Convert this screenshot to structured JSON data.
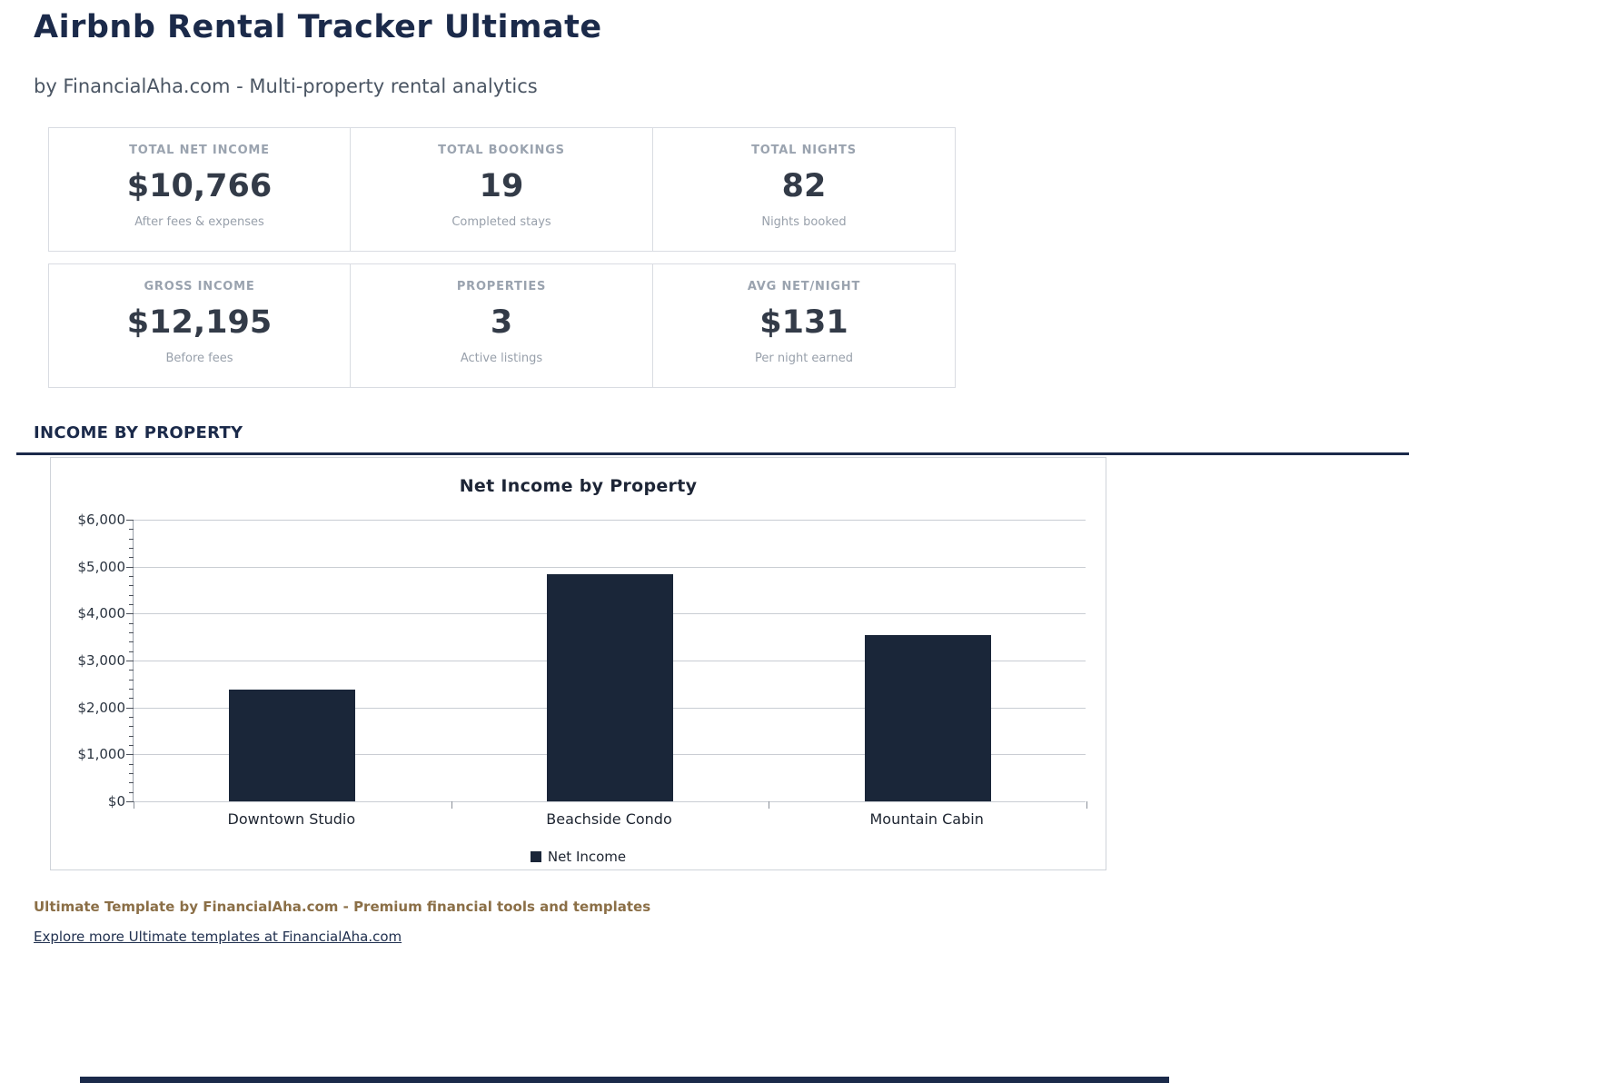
{
  "header": {
    "title": "Airbnb Rental Tracker Ultimate",
    "subtitle": "by FinancialAha.com - Multi-property rental analytics"
  },
  "stats": [
    {
      "label": "TOTAL NET INCOME",
      "value": "$10,766",
      "sub": "After fees & expenses"
    },
    {
      "label": "TOTAL BOOKINGS",
      "value": "19",
      "sub": "Completed stays"
    },
    {
      "label": "TOTAL NIGHTS",
      "value": "82",
      "sub": "Nights booked"
    },
    {
      "label": "GROSS INCOME",
      "value": "$12,195",
      "sub": "Before fees"
    },
    {
      "label": "PROPERTIES",
      "value": "3",
      "sub": "Active listings"
    },
    {
      "label": "AVG NET/NIGHT",
      "value": "$131",
      "sub": "Per night earned"
    }
  ],
  "section_title": "INCOME BY PROPERTY",
  "chart_data": {
    "type": "bar",
    "title": "Net Income by Property",
    "categories": [
      "Downtown Studio",
      "Beachside Condo",
      "Mountain Cabin"
    ],
    "series": [
      {
        "name": "Net Income",
        "values": [
          2380,
          4840,
          3546
        ]
      }
    ],
    "xlabel": "",
    "ylabel": "",
    "ylim": [
      0,
      6000
    ],
    "ytick_interval": 1000,
    "minor_tick_interval": 200,
    "ytick_labels": [
      "$0",
      "$1,000",
      "$2,000",
      "$3,000",
      "$4,000",
      "$5,000",
      "$6,000"
    ],
    "bar_color": "#1a2639",
    "grid": true,
    "legend_position": "bottom"
  },
  "footer": {
    "tagline": "Ultimate Template by FinancialAha.com - Premium financial tools and templates",
    "link_text": "Explore more Ultimate templates at FinancialAha.com"
  },
  "colors": {
    "accent_navy": "#1b2a4a",
    "bar_navy": "#1a2639",
    "footer_gold": "#8b6f47"
  }
}
